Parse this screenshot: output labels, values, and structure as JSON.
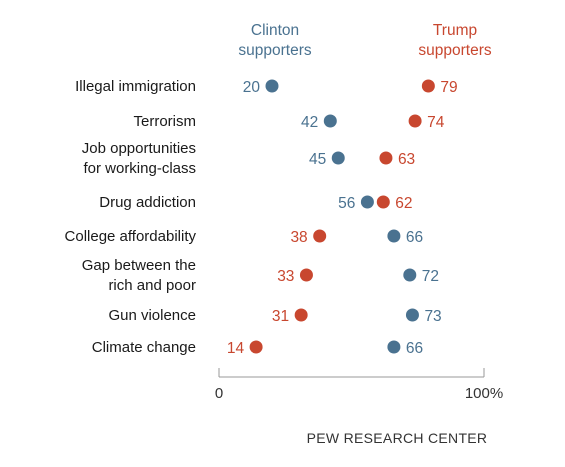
{
  "chart_data": {
    "type": "scatter",
    "subtype": "dot-plot",
    "headers": {
      "clinton": [
        "Clinton",
        "supporters"
      ],
      "trump": [
        "Trump",
        "supporters"
      ]
    },
    "categories": [
      [
        "Illegal immigration"
      ],
      [
        "Terrorism"
      ],
      [
        "Job opportunities",
        "for working-class"
      ],
      [
        "Drug addiction"
      ],
      [
        "College affordability"
      ],
      [
        "Gap between the",
        "rich and poor"
      ],
      [
        "Gun violence"
      ],
      [
        "Climate change"
      ]
    ],
    "series": [
      {
        "name": "Clinton supporters",
        "color": "#4a7290",
        "values": [
          20,
          42,
          45,
          56,
          66,
          72,
          73,
          66
        ]
      },
      {
        "name": "Trump supporters",
        "color": "#c8472f",
        "values": [
          79,
          74,
          63,
          62,
          38,
          33,
          31,
          14
        ]
      }
    ],
    "x_ticks": [
      "0",
      "100%"
    ],
    "xlim": [
      0,
      100
    ],
    "grid": false
  },
  "source": "PEW RESEARCH CENTER"
}
